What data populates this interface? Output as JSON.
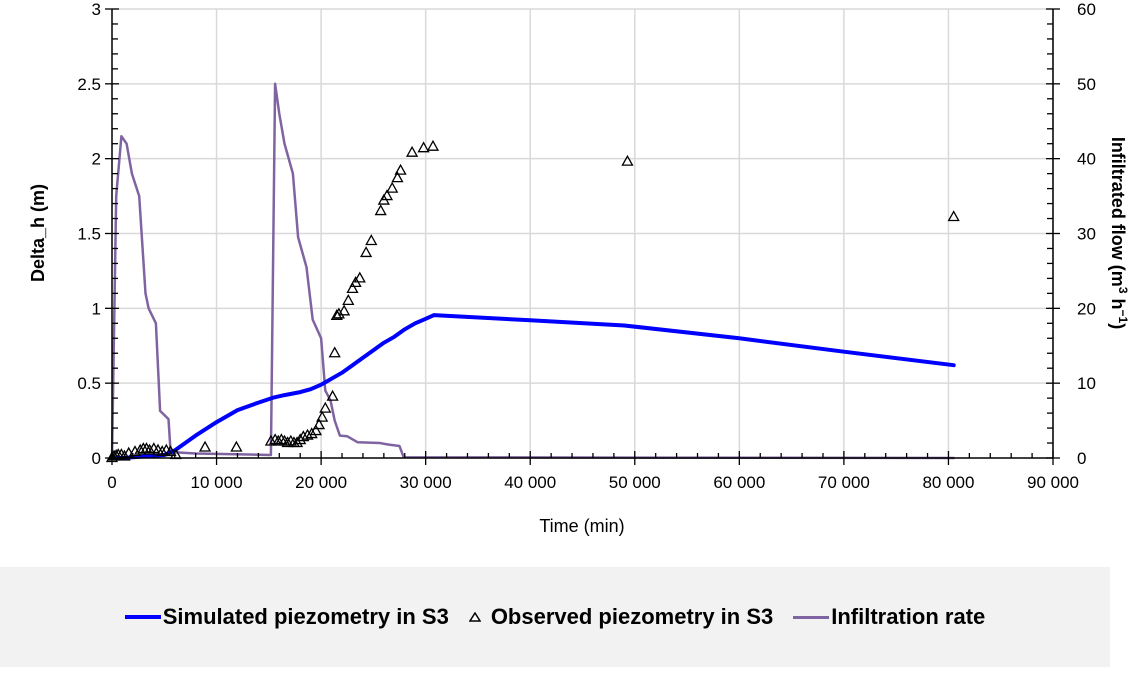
{
  "chart_data": {
    "type": "line",
    "title": "",
    "xlabel": "Time (min)",
    "ylabel": "Delta_h (m)",
    "y2label_main": "Infiltrated flow  (m",
    "y2label_sup1": "3",
    "y2label_mid": " h",
    "y2label_sup2": "−1",
    "y2label_end": ")",
    "xlim": [
      0,
      90000
    ],
    "ylim": [
      0,
      3
    ],
    "y2lim": [
      0,
      60
    ],
    "grid": true,
    "legend_position": "bottom",
    "x_ticks": [
      0,
      10000,
      20000,
      30000,
      40000,
      50000,
      60000,
      70000,
      80000,
      90000
    ],
    "x_tick_labels": [
      "0",
      "10 000",
      "20 000",
      "30 000",
      "40 000",
      "50 000",
      "60 000",
      "70 000",
      "80 000",
      "90 000"
    ],
    "y_ticks": [
      0,
      0.5,
      1,
      1.5,
      2,
      2.5,
      3
    ],
    "y_tick_labels": [
      "0",
      "0.5",
      "1",
      "1.5",
      "2",
      "2.5",
      "3"
    ],
    "y2_ticks": [
      0,
      10,
      20,
      30,
      40,
      50,
      60
    ],
    "y2_tick_labels": [
      "0",
      "10",
      "20",
      "30",
      "40",
      "50",
      "60"
    ],
    "series": [
      {
        "name": "Simulated piezometry in S3",
        "axis": "left",
        "kind": "line",
        "color": "#0000ff",
        "x": [
          0,
          1000,
          2000,
          3000,
          4000,
          5000,
          6000,
          8000,
          10000,
          12000,
          14000,
          15500,
          16500,
          18000,
          19000,
          20000,
          21000,
          22000,
          23000,
          24000,
          25000,
          26000,
          27000,
          28000,
          29000,
          30000,
          30800,
          40000,
          49000,
          60000,
          70000,
          80500
        ],
        "y": [
          0,
          0,
          0.005,
          0.01,
          0.015,
          0.02,
          0.05,
          0.15,
          0.24,
          0.32,
          0.37,
          0.405,
          0.42,
          0.44,
          0.46,
          0.49,
          0.53,
          0.57,
          0.62,
          0.67,
          0.72,
          0.77,
          0.81,
          0.86,
          0.9,
          0.93,
          0.955,
          0.92,
          0.885,
          0.8,
          0.71,
          0.62
        ]
      },
      {
        "name": "Observed piezometry in S3",
        "axis": "left",
        "kind": "scatter",
        "color": "#000000",
        "x": [
          0,
          200,
          400,
          600,
          900,
          1200,
          1600,
          2200,
          2700,
          3000,
          3300,
          3600,
          4000,
          4400,
          4800,
          5200,
          5600,
          6100,
          8900,
          11900,
          15200,
          15600,
          15900,
          16200,
          16500,
          16800,
          17100,
          17400,
          17700,
          18000,
          18300,
          18700,
          19100,
          19500,
          19800,
          20100,
          20400,
          21100,
          21300,
          21500,
          21700,
          22200,
          22600,
          23000,
          23300,
          23700,
          24300,
          24800,
          25700,
          26000,
          26300,
          26800,
          27300,
          27600,
          28700,
          29800,
          30700,
          49300,
          80500
        ],
        "y": [
          0,
          0.01,
          0.015,
          0.02,
          0.02,
          0.01,
          0.03,
          0.04,
          0.05,
          0.06,
          0.06,
          0.05,
          0.06,
          0.05,
          0.04,
          0.05,
          0.04,
          0.02,
          0.07,
          0.07,
          0.11,
          0.12,
          0.11,
          0.12,
          0.11,
          0.1,
          0.11,
          0.1,
          0.1,
          0.12,
          0.14,
          0.15,
          0.16,
          0.18,
          0.22,
          0.27,
          0.33,
          0.41,
          0.7,
          0.95,
          0.96,
          0.98,
          1.05,
          1.13,
          1.17,
          1.2,
          1.37,
          1.45,
          1.65,
          1.72,
          1.75,
          1.8,
          1.87,
          1.92,
          2.04,
          2.07,
          2.08,
          1.98,
          1.61
        ]
      },
      {
        "name": "Infiltration rate",
        "axis": "right",
        "kind": "line",
        "color": "#8064a2",
        "x": [
          0,
          400,
          900,
          1400,
          1900,
          2600,
          3200,
          3500,
          4200,
          4600,
          5400,
          5600,
          8000,
          15200,
          15600,
          16000,
          16500,
          17300,
          17800,
          18600,
          19200,
          20000,
          20400,
          20900,
          21300,
          21800,
          22500,
          23500,
          25600,
          26400,
          27500,
          27900,
          80500
        ],
        "y": [
          0,
          35,
          43,
          42,
          38,
          35,
          22,
          20,
          18,
          6.3,
          5.2,
          0.8,
          0.6,
          0.4,
          50,
          46,
          42,
          38,
          29.5,
          25.5,
          18.5,
          16,
          9,
          7.7,
          5,
          3,
          2.9,
          2.1,
          2,
          1.8,
          1.6,
          0.1,
          0
        ]
      }
    ]
  },
  "legend": {
    "items": [
      {
        "label": "Simulated piezometry in S3",
        "color": "#0000ff"
      },
      {
        "label": "Observed piezometry in S3",
        "color": "#000000"
      },
      {
        "label": "Infiltration rate",
        "color": "#8064a2"
      }
    ]
  }
}
